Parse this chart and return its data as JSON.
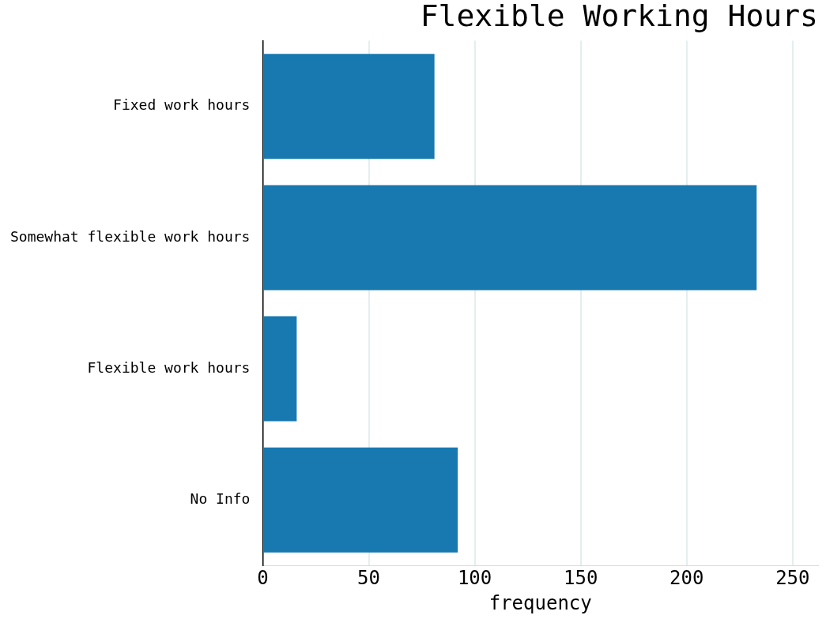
{
  "chart_data": {
    "type": "bar",
    "orientation": "horizontal",
    "title": "Flexible Working Hours",
    "xlabel": "frequency",
    "categories": [
      "Fixed work hours",
      "Somewhat flexible work hours",
      "Flexible work hours",
      "No Info"
    ],
    "values": [
      81,
      233,
      16,
      92
    ],
    "color": "#1878b0",
    "xlim": [
      0,
      262
    ],
    "xticks": [
      0,
      50,
      100,
      150,
      200,
      250
    ],
    "grid": "x"
  }
}
